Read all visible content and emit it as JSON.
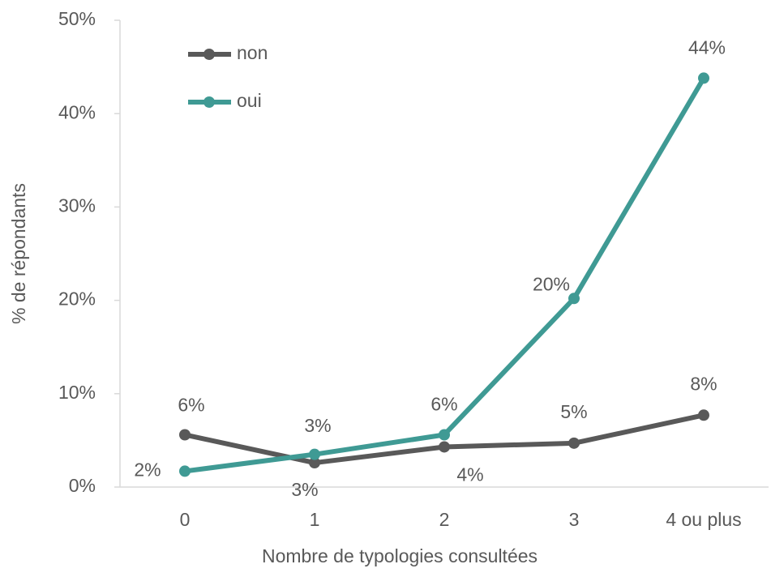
{
  "chart_data": {
    "type": "line",
    "y_axis_label": "% de répondants",
    "x_axis_label": "Nombre de typologies consultées",
    "categories": [
      "0",
      "1",
      "2",
      "3",
      "4 ou plus"
    ],
    "series": [
      {
        "name": "non",
        "color": "#595959",
        "values": [
          5.6,
          2.6,
          4.3,
          4.7,
          7.7
        ],
        "value_labels": [
          "6%",
          "3%",
          "4%",
          "5%",
          "8%"
        ]
      },
      {
        "name": "oui",
        "color": "#3f9a94",
        "values": [
          1.7,
          3.5,
          5.6,
          20.2,
          43.8
        ],
        "value_labels": [
          "2%",
          "3%",
          "6%",
          "20%",
          "44%"
        ]
      }
    ],
    "ylim": [
      0,
      50
    ],
    "yticks": [
      {
        "value": 0,
        "label": "0%"
      },
      {
        "value": 10,
        "label": "10%"
      },
      {
        "value": 20,
        "label": "20%"
      },
      {
        "value": 30,
        "label": "30%"
      },
      {
        "value": 40,
        "label": "40%"
      },
      {
        "value": 50,
        "label": "50%"
      }
    ],
    "legend": "upper left"
  }
}
